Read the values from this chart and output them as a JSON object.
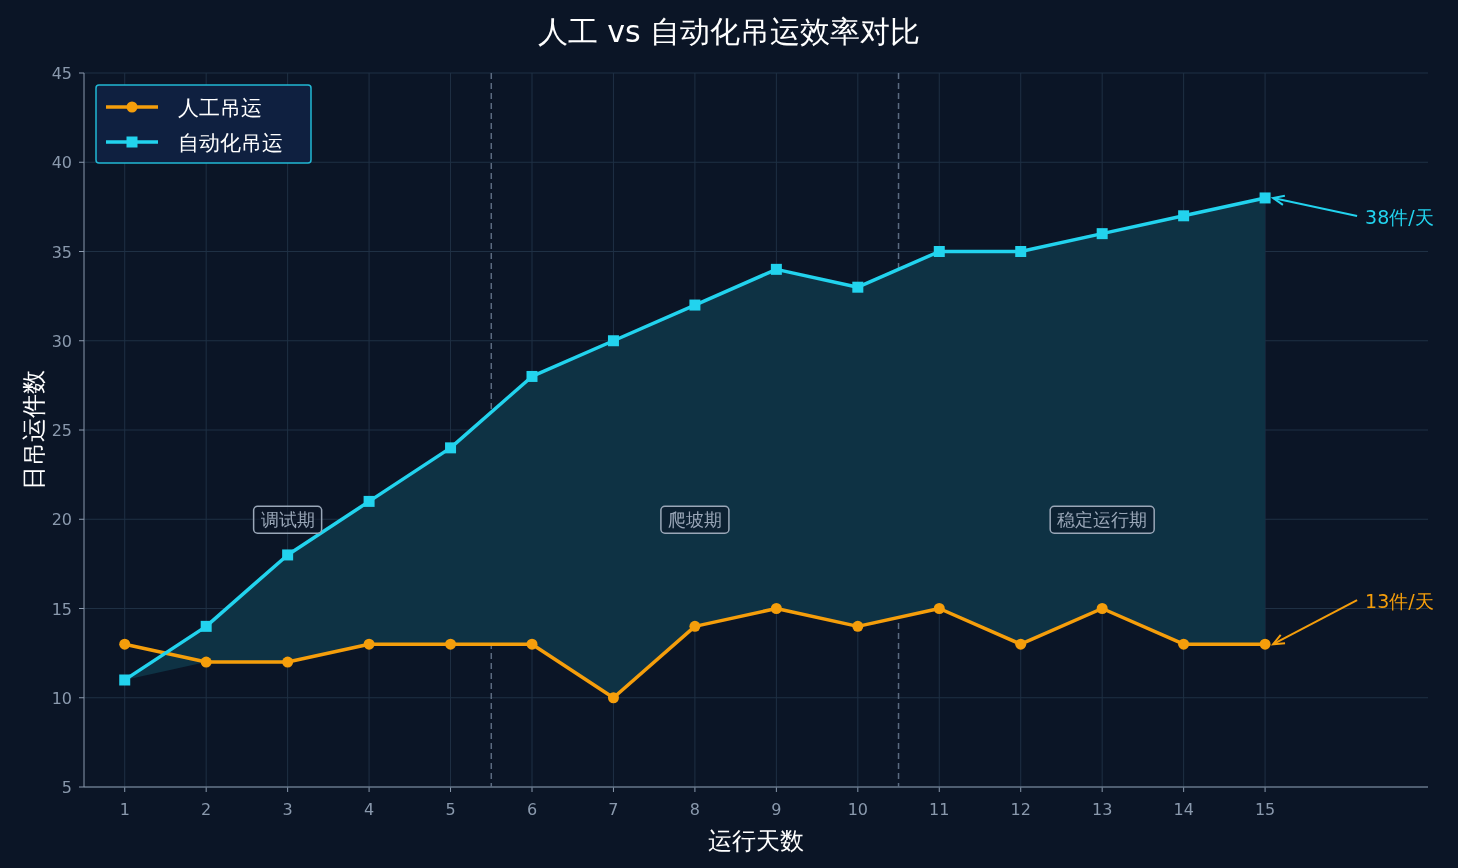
{
  "chart_data": {
    "type": "line",
    "title": "人工 vs 自动化吊运效率对比",
    "xlabel": "运行天数",
    "ylabel": "日吊运件数",
    "x": [
      1,
      2,
      3,
      4,
      5,
      6,
      7,
      8,
      9,
      10,
      11,
      12,
      13,
      14,
      15
    ],
    "series": [
      {
        "name": "人工吊运",
        "color": "#f59e0b",
        "marker": "circle",
        "values": [
          13,
          12,
          12,
          13,
          13,
          13,
          10,
          14,
          15,
          14,
          15,
          13,
          15,
          13,
          13
        ]
      },
      {
        "name": "自动化吊运",
        "color": "#22d3ee",
        "marker": "square",
        "values": [
          11,
          14,
          18,
          21,
          24,
          28,
          30,
          32,
          34,
          33,
          35,
          35,
          36,
          37,
          38
        ],
        "lower": [
          11,
          12,
          12,
          13,
          13,
          13,
          10,
          14,
          15,
          14,
          15,
          13,
          15,
          13,
          13
        ],
        "upper": [
          11,
          14,
          18,
          21,
          24,
          28,
          30,
          32,
          34,
          33,
          35,
          35,
          36,
          37,
          38
        ]
      }
    ],
    "xlim": [
      0.5,
      17
    ],
    "xticks": [
      1,
      2,
      3,
      4,
      5,
      6,
      7,
      8,
      9,
      10,
      11,
      12,
      13,
      14,
      15
    ],
    "ylim": [
      5,
      45
    ],
    "yticks": [
      5,
      10,
      15,
      20,
      25,
      30,
      35,
      40,
      45
    ],
    "grid": true,
    "legend": "top left",
    "line_style": "solid",
    "ref_lines": [
      {
        "axis": "x",
        "value": 5.5,
        "line_style": "dashed",
        "color": "#5b6b80"
      },
      {
        "axis": "x",
        "value": 10.5,
        "line_style": "dashed",
        "color": "#5b6b80"
      }
    ],
    "annotations": [
      "调试期",
      "爬坡期",
      "稳定运行期",
      {
        "text": "38件/天",
        "x": 15,
        "y": 38
      },
      {
        "text": "13件/天",
        "x": 15,
        "y": 13
      }
    ]
  }
}
